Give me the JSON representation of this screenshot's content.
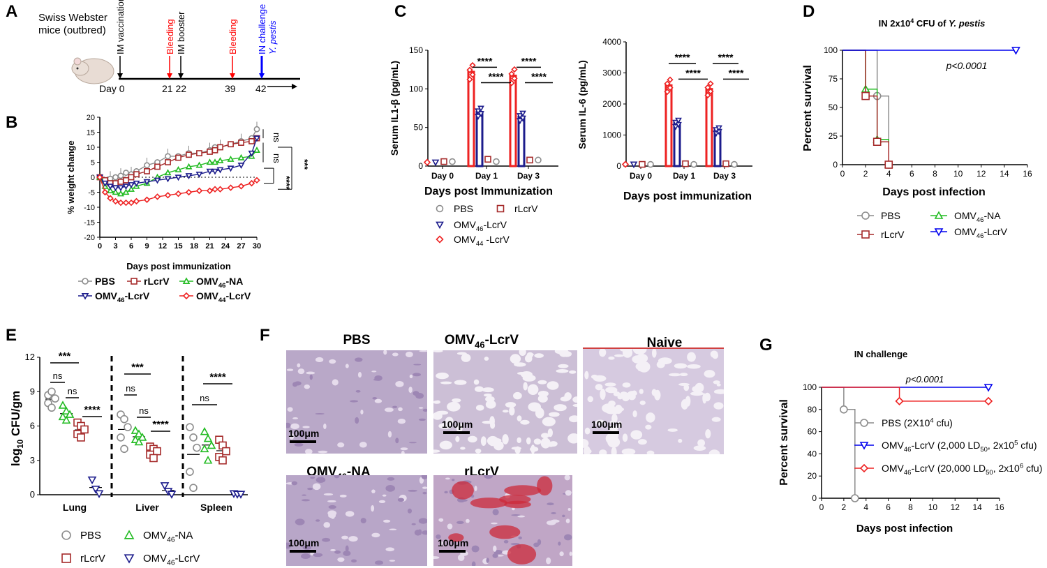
{
  "panels": {
    "A": {
      "letter": "A",
      "mouse_label_1": "Swiss Webster",
      "mouse_label_2": "mice (outbred)",
      "events": [
        {
          "day": "0",
          "label": "IM vaccination",
          "color": "#000000"
        },
        {
          "day": "21",
          "label": "Bleeding",
          "color": "#ff0000"
        },
        {
          "day": "22",
          "label": "IM booster",
          "color": "#000000"
        },
        {
          "day": "39",
          "label": "Bleeding",
          "color": "#ff0000"
        },
        {
          "day": "42",
          "label": "IN challenge",
          "label2": "Y. pestis",
          "color": "#0000ff"
        }
      ],
      "day_prefix": "Day"
    },
    "B": {
      "letter": "B",
      "ylabel": "% weight change",
      "xlabel": "Days post immunization",
      "sig_labels": [
        "ns",
        "ns",
        "****",
        "***"
      ],
      "legend": [
        "PBS",
        "rLcrV",
        "OMV46-NA",
        "OMV46-LcrV",
        "OMV44-LcrV"
      ]
    },
    "C": {
      "letter": "C",
      "xlabel_left": "Days post Immunization",
      "xlabel_right": "Days post immunization",
      "ylabel_left": "Serum IL1-β (pg/mL)",
      "ylabel_right": "Serum IL-6 (pg/mL)",
      "stars": "****",
      "legend": [
        "PBS",
        "rLcrV",
        "OMV46-LcrV",
        "OMV44 -LcrV"
      ]
    },
    "D": {
      "letter": "D",
      "title": "IN 2x10^4 CFU of Y. pestis",
      "ylabel": "Percent survival",
      "xlabel": "Days post infection",
      "pval": "p<0.0001",
      "legend": [
        "PBS",
        "OMV46-NA",
        "rLcrV",
        "OMV46-LcrV"
      ]
    },
    "E": {
      "letter": "E",
      "ylabel": "log10 CFU/gm",
      "sig": [
        "***",
        "ns",
        "ns",
        "****",
        "***",
        "ns",
        "ns",
        "****",
        "ns",
        "****"
      ],
      "legend": [
        "PBS",
        "OMV46-NA",
        "rLcrV",
        "OMV46-LcrV"
      ]
    },
    "F": {
      "letter": "F",
      "titles": [
        "PBS",
        "OMV46-LcrV",
        "Naive",
        "OMV46-NA",
        "rLcrV"
      ],
      "scale": "100μm"
    },
    "G": {
      "letter": "G",
      "title": "IN challenge",
      "ylabel": "Percent survival",
      "xlabel": "Days post infection",
      "pval": "p<0.0001",
      "legend": [
        "PBS (2X10^4 cfu)",
        "OMV46-LcrV (2,000 LD50, 2x10^5 cfu)",
        "OMV46-LcrV (20,000 LD50, 2x10^6 cfu)"
      ]
    }
  },
  "colors": {
    "PBS": "#8c8c8c",
    "rLcrV": "#a52a2a",
    "OMV46-NA": "#22bb22",
    "OMV46-LcrV": "#1c1c8c",
    "OMV44-LcrV": "#ee2222",
    "blue_line": "#0000ee"
  },
  "chart_data": [
    {
      "id": "B",
      "type": "line",
      "title": "",
      "xlabel": "Days post immunization",
      "ylabel": "% weight change",
      "xlim": [
        0,
        30
      ],
      "ylim": [
        -20,
        20
      ],
      "xticks": [
        0,
        3,
        6,
        9,
        12,
        15,
        18,
        21,
        24,
        27,
        30
      ],
      "yticks": [
        -20,
        -15,
        -10,
        -5,
        0,
        5,
        10,
        15,
        20
      ],
      "x": [
        0,
        1,
        2,
        3,
        4,
        5,
        6,
        7,
        9,
        11,
        13,
        15,
        17,
        19,
        21,
        22,
        23,
        25,
        27,
        29,
        30
      ],
      "series": [
        {
          "name": "PBS",
          "values": [
            0,
            -1,
            -0.5,
            0,
            0.5,
            1.5,
            1,
            2,
            4,
            5,
            7,
            7,
            8,
            8,
            9,
            10,
            10,
            11,
            12,
            13,
            16
          ]
        },
        {
          "name": "rLcrV",
          "values": [
            0,
            -1,
            -2,
            -2,
            -1.5,
            -1,
            0,
            1,
            2,
            3.5,
            5,
            6.5,
            7.5,
            8,
            8.5,
            9,
            10,
            11,
            11.5,
            12,
            13
          ]
        },
        {
          "name": "OMV46-NA",
          "values": [
            0,
            -3,
            -4.5,
            -5,
            -5.5,
            -5,
            -4,
            -3,
            -2,
            0,
            1.5,
            2.5,
            3.5,
            4,
            5,
            5,
            5.5,
            6,
            6.5,
            7,
            9
          ]
        },
        {
          "name": "OMV46-LcrV",
          "values": [
            0,
            -2,
            -3,
            -3.5,
            -3.5,
            -3,
            -2.5,
            -2,
            -1.5,
            -1,
            -0.5,
            0,
            0.5,
            1,
            2,
            2,
            2.5,
            3,
            4,
            8,
            13
          ]
        },
        {
          "name": "OMV44-LcrV",
          "values": [
            0,
            -5,
            -7,
            -8,
            -8.5,
            -8.5,
            -8.5,
            -8,
            -7.5,
            -6.5,
            -6,
            -5.5,
            -5,
            -4.5,
            -4.5,
            -4,
            -4,
            -3.5,
            -3,
            -2,
            -1
          ]
        }
      ]
    },
    {
      "id": "C1",
      "type": "bar",
      "xlabel": "Days post Immunization",
      "ylabel": "Serum IL1-β (pg/mL)",
      "ylim": [
        0,
        150
      ],
      "yticks": [
        0,
        50,
        100,
        150
      ],
      "categories": [
        "Day 0",
        "Day 1",
        "Day 3"
      ],
      "series": [
        {
          "name": "OMV44 -LcrV",
          "values": [
            3,
            122,
            117
          ]
        },
        {
          "name": "OMV46-LcrV",
          "values": [
            3,
            70,
            64
          ]
        },
        {
          "name": "rLcrV",
          "values": [
            4,
            7,
            6
          ]
        },
        {
          "name": "PBS",
          "values": [
            4,
            4,
            6
          ]
        }
      ]
    },
    {
      "id": "C2",
      "type": "bar",
      "xlabel": "Days post immunization",
      "ylabel": "Serum IL-6 (pg/mL)",
      "ylim": [
        0,
        4000
      ],
      "yticks": [
        0,
        1000,
        2000,
        3000,
        4000
      ],
      "categories": [
        "Day 0",
        "Day 1",
        "Day 3"
      ],
      "series": [
        {
          "name": "OMV44 -LcrV",
          "values": [
            10,
            2600,
            2480
          ]
        },
        {
          "name": "OMV46-LcrV",
          "values": [
            10,
            1380,
            1150
          ]
        },
        {
          "name": "rLcrV",
          "values": [
            10,
            30,
            30
          ]
        },
        {
          "name": "PBS",
          "values": [
            10,
            10,
            10
          ]
        }
      ]
    },
    {
      "id": "D",
      "type": "line",
      "title": "IN 2x10^4 CFU of Y. pestis",
      "xlabel": "Days post infection",
      "ylabel": "Percent survival",
      "xlim": [
        0,
        16
      ],
      "ylim": [
        0,
        100
      ],
      "xticks": [
        0,
        2,
        4,
        6,
        8,
        10,
        12,
        14,
        16
      ],
      "yticks": [
        0,
        25,
        50,
        75,
        100
      ],
      "series": [
        {
          "name": "PBS",
          "x": [
            0,
            3,
            3,
            4,
            4
          ],
          "values": [
            100,
            100,
            60,
            60,
            0
          ]
        },
        {
          "name": "OMV46-NA",
          "x": [
            0,
            2,
            2,
            3,
            3,
            4,
            4
          ],
          "values": [
            100,
            100,
            66,
            66,
            22,
            22,
            0
          ]
        },
        {
          "name": "rLcrV",
          "x": [
            0,
            2,
            2,
            3,
            3,
            4,
            4
          ],
          "values": [
            100,
            100,
            60,
            60,
            20,
            20,
            0
          ]
        },
        {
          "name": "OMV46-LcrV",
          "x": [
            0,
            15
          ],
          "values": [
            100,
            100
          ]
        }
      ]
    },
    {
      "id": "E",
      "type": "scatter",
      "ylabel": "log10 CFU/gm",
      "ylim": [
        0,
        12
      ],
      "yticks": [
        0,
        3,
        6,
        9,
        12
      ],
      "categories": [
        "Lung",
        "Liver",
        "Spleen"
      ],
      "series": [
        {
          "name": "PBS",
          "values": [
            [
              8.7,
              9.0,
              8.4,
              8.0,
              7.6
            ],
            [
              7.0,
              6.6,
              5.9,
              5.0,
              4.0
            ],
            [
              5.9,
              5.0,
              4.1,
              2.0,
              0.6
            ]
          ]
        },
        {
          "name": "OMV46-NA",
          "values": [
            [
              7.8,
              7.3,
              7.0,
              6.8,
              6.5
            ],
            [
              5.6,
              5.3,
              5.0,
              4.8,
              4.6
            ],
            [
              5.5,
              4.9,
              4.3,
              4.0,
              3.0
            ]
          ]
        },
        {
          "name": "rLcrV",
          "values": [
            [
              6.3,
              6.0,
              5.7,
              5.3,
              5.0
            ],
            [
              4.2,
              4.0,
              3.8,
              3.5,
              3.2
            ],
            [
              4.8,
              4.3,
              3.8,
              3.3,
              3.0
            ]
          ]
        },
        {
          "name": "OMV46-LcrV",
          "values": [
            [
              1.3,
              0.5,
              0.1
            ],
            [
              0.8,
              0.3,
              0.05
            ],
            [
              0.1,
              0.05,
              0.05
            ]
          ]
        }
      ]
    },
    {
      "id": "G",
      "type": "line",
      "title": "IN challenge",
      "xlabel": "Days post infection",
      "ylabel": "Percent survival",
      "xlim": [
        0,
        16
      ],
      "ylim": [
        0,
        100
      ],
      "xticks": [
        0,
        2,
        4,
        6,
        8,
        10,
        12,
        14,
        16
      ],
      "yticks": [
        0,
        20,
        40,
        60,
        80,
        100
      ],
      "series": [
        {
          "name": "PBS (2X10^4 cfu)",
          "x": [
            0,
            2,
            2,
            3,
            3
          ],
          "values": [
            100,
            100,
            80,
            80,
            0
          ]
        },
        {
          "name": "OMV46-LcrV (2,000 LD50, 2x10^5 cfu)",
          "x": [
            0,
            15
          ],
          "values": [
            100,
            100
          ]
        },
        {
          "name": "OMV46-LcrV (20,000 LD50, 2x10^6 cfu)",
          "x": [
            0,
            7,
            7,
            15
          ],
          "values": [
            100,
            100,
            87.5,
            87.5
          ]
        }
      ]
    }
  ]
}
